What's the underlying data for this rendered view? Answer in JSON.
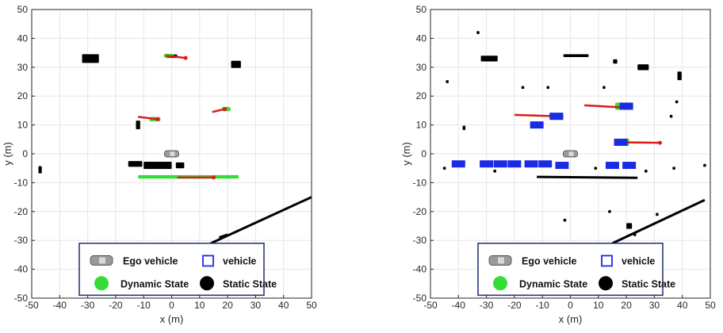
{
  "chart_data": [
    {
      "type": "scatter",
      "xlabel": "x (m)",
      "ylabel": "y (m)",
      "xlim": [
        -50,
        50
      ],
      "ylim": [
        -50,
        50
      ],
      "xticks": [
        -50,
        -40,
        -30,
        -20,
        -10,
        0,
        10,
        20,
        30,
        40,
        50
      ],
      "yticks": [
        -50,
        -40,
        -30,
        -20,
        -10,
        0,
        10,
        20,
        30,
        40,
        50
      ],
      "grid": true,
      "ego": {
        "x": 0,
        "y": 0
      },
      "static_blobs": [
        {
          "x": -29,
          "y": 33,
          "w": 6,
          "h": 3
        },
        {
          "x": -47,
          "y": -5.5,
          "w": 1.2,
          "h": 2.5
        },
        {
          "x": -12,
          "y": 10,
          "w": 1.5,
          "h": 3
        },
        {
          "x": 0,
          "y": 33.8,
          "w": 4,
          "h": 1.2
        },
        {
          "x": 23,
          "y": 31,
          "w": 3.5,
          "h": 2.5
        },
        {
          "x": -13,
          "y": -3.5,
          "w": 5,
          "h": 2
        },
        {
          "x": -5,
          "y": -4,
          "w": 10,
          "h": 2.5
        },
        {
          "x": 3,
          "y": -4,
          "w": 3,
          "h": 2
        }
      ],
      "static_lines": [
        {
          "x1": 14,
          "y1": -31,
          "x2": 50,
          "y2": -15
        },
        {
          "x1": 17,
          "y1": -29,
          "x2": 20,
          "y2": -28
        }
      ],
      "dynamic_tracks": [
        {
          "x": -1,
          "y": 34,
          "w": 3.5,
          "h": 1.3,
          "ax1": -2,
          "ay1": 34,
          "ax2": 5,
          "ay2": 33.2
        },
        {
          "x": -6,
          "y": 12,
          "w": 4,
          "h": 1.5,
          "ax1": -12,
          "ay1": 12.8,
          "ax2": -5,
          "ay2": 12
        },
        {
          "x": 19.5,
          "y": 15.5,
          "w": 3,
          "h": 1.5,
          "ax1": 14.5,
          "ay1": 14.5,
          "ax2": 19,
          "ay2": 15.5
        },
        {
          "x": 6,
          "y": -8,
          "w": 36,
          "h": 1.2,
          "ax1": 2,
          "ay1": -8.2,
          "ax2": 15,
          "ay2": -8.2
        }
      ],
      "vehicles": [],
      "legend": [
        {
          "symbol": "ego-icon",
          "label": "Ego vehicle"
        },
        {
          "symbol": "vehicle-square-icon",
          "label": "vehicle"
        },
        {
          "symbol": "dynamic-dot-icon",
          "label": "Dynamic State"
        },
        {
          "symbol": "static-dot-icon",
          "label": "Static State"
        }
      ]
    },
    {
      "type": "scatter",
      "xlabel": "x (m)",
      "ylabel": "y (m)",
      "xlim": [
        -50,
        50
      ],
      "ylim": [
        -50,
        50
      ],
      "xticks": [
        -50,
        -40,
        -30,
        -20,
        -10,
        0,
        10,
        20,
        30,
        40,
        50
      ],
      "yticks": [
        -50,
        -40,
        -30,
        -20,
        -10,
        0,
        10,
        20,
        30,
        40,
        50
      ],
      "grid": true,
      "ego": {
        "x": 0,
        "y": 0
      },
      "static_blobs": [
        {
          "x": -29,
          "y": 33,
          "w": 6,
          "h": 2
        },
        {
          "x": -33,
          "y": 42,
          "w": 1,
          "h": 1
        },
        {
          "x": -44,
          "y": 25,
          "w": 1,
          "h": 1
        },
        {
          "x": -38,
          "y": 9,
          "w": 1,
          "h": 1.5
        },
        {
          "x": -45,
          "y": -5,
          "w": 1,
          "h": 1
        },
        {
          "x": -17,
          "y": 23,
          "w": 1,
          "h": 1
        },
        {
          "x": -8,
          "y": 23,
          "w": 1,
          "h": 1
        },
        {
          "x": 2,
          "y": 34,
          "w": 9,
          "h": 1
        },
        {
          "x": 12,
          "y": 23,
          "w": 1,
          "h": 1
        },
        {
          "x": 16,
          "y": 32,
          "w": 1.5,
          "h": 1.5
        },
        {
          "x": 26,
          "y": 30,
          "w": 4,
          "h": 2
        },
        {
          "x": 39,
          "y": 27,
          "w": 1.5,
          "h": 3
        },
        {
          "x": 38,
          "y": 18,
          "w": 1,
          "h": 1
        },
        {
          "x": 36,
          "y": 13,
          "w": 1,
          "h": 1
        },
        {
          "x": 37,
          "y": -5,
          "w": 1,
          "h": 1
        },
        {
          "x": 48,
          "y": -4,
          "w": 1,
          "h": 1
        },
        {
          "x": 9,
          "y": -5,
          "w": 1,
          "h": 1
        },
        {
          "x": 27,
          "y": -6,
          "w": 1,
          "h": 1
        },
        {
          "x": -2,
          "y": -23,
          "w": 1,
          "h": 1
        },
        {
          "x": 14,
          "y": -20,
          "w": 1,
          "h": 1
        },
        {
          "x": 21,
          "y": -25,
          "w": 2,
          "h": 2
        },
        {
          "x": 23,
          "y": -28,
          "w": 1,
          "h": 1
        },
        {
          "x": 31,
          "y": -21,
          "w": 1,
          "h": 1
        },
        {
          "x": -27,
          "y": -6,
          "w": 1,
          "h": 1
        }
      ],
      "static_lines": [
        {
          "x1": 15,
          "y1": -31,
          "x2": 48,
          "y2": -16
        },
        {
          "x1": -12,
          "y1": -8,
          "x2": 24,
          "y2": -8.3
        }
      ],
      "dynamic_tracks": [
        {
          "x": -5,
          "y": 13,
          "w": 5,
          "h": 2.5,
          "ax1": -20,
          "ay1": 13.5,
          "ax2": -5,
          "ay2": 13
        },
        {
          "x": 19,
          "y": 16.5,
          "w": 6,
          "h": 2.5,
          "ax1": 5,
          "ay1": 16.8,
          "ax2": 20,
          "ay2": 16
        },
        {
          "x": 19,
          "y": 4,
          "w": 4,
          "h": 2.5,
          "ax1": 19,
          "ay1": 4,
          "ax2": 32,
          "ay2": 3.8
        }
      ],
      "vehicles": [
        {
          "x": -40,
          "y": -3.5
        },
        {
          "x": -30,
          "y": -3.5
        },
        {
          "x": -25,
          "y": -3.5
        },
        {
          "x": -20,
          "y": -3.5
        },
        {
          "x": -14,
          "y": -3.5
        },
        {
          "x": -9,
          "y": -3.5
        },
        {
          "x": -3,
          "y": -4
        },
        {
          "x": 15,
          "y": -4
        },
        {
          "x": 21,
          "y": -4
        },
        {
          "x": -12,
          "y": 10
        },
        {
          "x": -5,
          "y": 13
        },
        {
          "x": 20,
          "y": 16.5
        },
        {
          "x": 18,
          "y": 4
        }
      ],
      "legend": [
        {
          "symbol": "ego-icon",
          "label": "Ego vehicle"
        },
        {
          "symbol": "vehicle-square-icon",
          "label": "vehicle"
        },
        {
          "symbol": "dynamic-dot-icon",
          "label": "Dynamic State"
        },
        {
          "symbol": "static-dot-icon",
          "label": "Static State"
        }
      ]
    }
  ],
  "colors": {
    "dynamic": "#33dd33",
    "static": "#000000",
    "vehicle": "#1a2be6",
    "arrow": "#e01818",
    "grid": "#e6e6e6",
    "legend_border": "#1d2f6b"
  }
}
